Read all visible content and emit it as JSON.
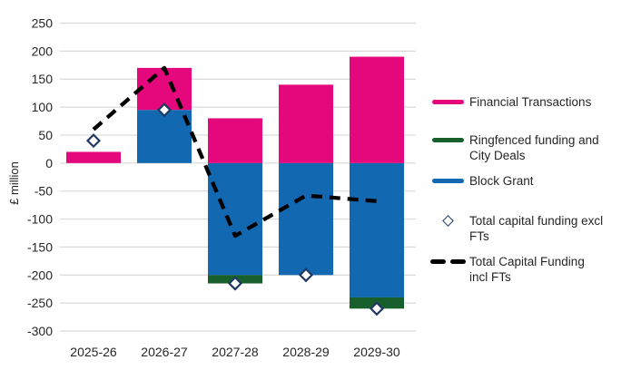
{
  "chart_data": {
    "type": "bar",
    "subtype": "stacked-bar-with-line-and-markers",
    "title": "",
    "xlabel": "",
    "ylabel": "£ million",
    "categories": [
      "2025-26",
      "2026-27",
      "2027-28",
      "2028-29",
      "2029-30"
    ],
    "series": [
      {
        "name": "Financial Transactions",
        "color": "#E5087D",
        "values": [
          20,
          75,
          80,
          140,
          190
        ]
      },
      {
        "name": "Ringfenced funding and City Deals",
        "color": "#175F2B",
        "values": [
          0,
          0,
          -15,
          0,
          -20
        ]
      },
      {
        "name": "Block Grant",
        "color": "#1268B1",
        "values": [
          0,
          95,
          -200,
          -200,
          -240
        ]
      }
    ],
    "markers": {
      "name": "Total capital funding excl FTs",
      "shape": "open-diamond",
      "color": "#1F3864",
      "fill": "#ffffff",
      "values": [
        40,
        95,
        -215,
        -200,
        -260
      ]
    },
    "dashed_line": {
      "name": "Total Capital Funding incl FTs",
      "color": "#000000",
      "style": "dashed",
      "values": [
        60,
        170,
        -130,
        -58,
        -68
      ]
    },
    "ylim": [
      -300,
      250
    ],
    "yticks": [
      250,
      200,
      150,
      100,
      50,
      0,
      -50,
      -100,
      -150,
      -200,
      -250,
      -300
    ],
    "grid": true,
    "gridline_color": "#D9D9D9",
    "legend_position": "right"
  },
  "legend": {
    "items": [
      {
        "label": "Financial Transactions",
        "lines": [
          "Financial Transactions",
          ""
        ],
        "swatch": "line",
        "color": "#E5087D"
      },
      {
        "label": "Ringfenced funding and City Deals",
        "lines": [
          "Ringfenced funding and",
          "City Deals"
        ],
        "swatch": "line",
        "color": "#175F2B"
      },
      {
        "label": "Block Grant",
        "lines": [
          "Block Grant",
          ""
        ],
        "swatch": "line",
        "color": "#1268B1"
      },
      {
        "label": "Total capital funding excl FTs",
        "lines": [
          "Total capital funding excl",
          "FTs"
        ],
        "swatch": "diamond",
        "color": "#1F3864"
      },
      {
        "label": "Total Capital Funding incl FTs",
        "lines": [
          "Total Capital Funding",
          "incl FTs"
        ],
        "swatch": "dashes",
        "color": "#000000"
      }
    ]
  }
}
